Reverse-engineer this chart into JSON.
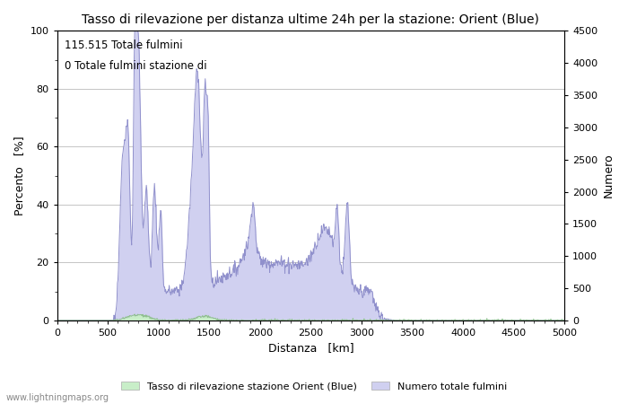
{
  "title": "Tasso di rilevazione per distanza ultime 24h per la stazione: Orient (Blue)",
  "xlabel": "Distanza   [km]",
  "ylabel_left": "Percento   [%]",
  "ylabel_right": "Numero",
  "annotation1": "115.515 Totale fulmini",
  "annotation2": "0 Totale fulmini stazione di",
  "legend_green": "Tasso di rilevazione stazione Orient (Blue)",
  "legend_blue": "Numero totale fulmini",
  "watermark": "www.lightningmaps.org",
  "xlim": [
    0,
    5000
  ],
  "ylim_left": [
    0,
    100
  ],
  "ylim_right": [
    0,
    4500
  ],
  "bg_color": "#ffffff",
  "grid_color": "#bbbbbb",
  "fill_blue_color": "#d0d0f0",
  "fill_green_color": "#c8eec8",
  "line_blue_color": "#9090cc",
  "line_green_color": "#90c090"
}
